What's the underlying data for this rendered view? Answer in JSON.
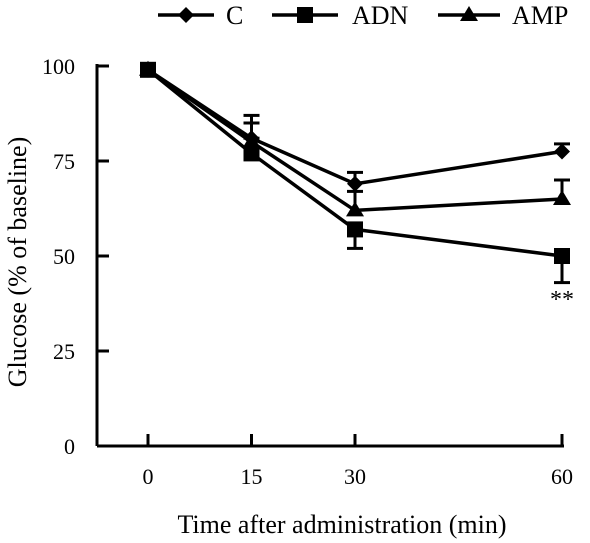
{
  "chart_data": {
    "type": "line",
    "title": "",
    "xlabel": "Time after administration (min)",
    "ylabel": "Glucose (% of baseline)",
    "x": [
      0,
      15,
      30,
      60
    ],
    "x_tick_labels": [
      "0",
      "15",
      "30",
      "60"
    ],
    "ylim": [
      0,
      100
    ],
    "y_ticks": [
      0,
      25,
      50,
      75,
      100
    ],
    "y_tick_labels": [
      "0",
      "25",
      "50",
      "75",
      "100"
    ],
    "grid": false,
    "legend_position": "top",
    "series": [
      {
        "name": "C",
        "marker": "diamond",
        "values": [
          99,
          81,
          69,
          77.5
        ],
        "errors": [
          0,
          4,
          3,
          2
        ]
      },
      {
        "name": "ADN",
        "marker": "square",
        "values": [
          99,
          77,
          57,
          50
        ],
        "errors": [
          0,
          4,
          5,
          7
        ]
      },
      {
        "name": "AMP",
        "marker": "triangle",
        "values": [
          99,
          80,
          62,
          65
        ],
        "errors": [
          0,
          7,
          5,
          5
        ]
      }
    ],
    "annotations": [
      {
        "text": "**",
        "x": 60,
        "y": 36
      }
    ],
    "colors": {
      "line": "#000000",
      "marker": "#000000"
    }
  }
}
